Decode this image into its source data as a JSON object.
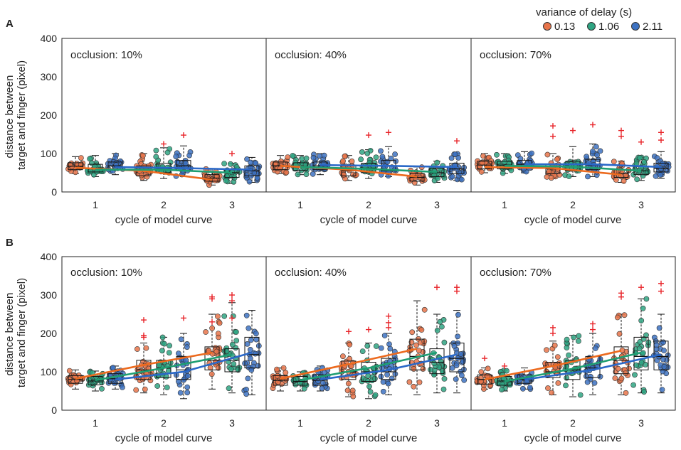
{
  "legend": {
    "title": "variance of delay (s)",
    "entries": [
      {
        "label": "0.13",
        "color": "#e8744a"
      },
      {
        "label": "1.06",
        "color": "#2fa583"
      },
      {
        "label": "2.11",
        "color": "#3d72c2"
      }
    ]
  },
  "colors": {
    "line": [
      "#ec6a1e",
      "#1e9e72",
      "#2a68c8"
    ],
    "outlier": "#e8252a",
    "box": "#111111"
  },
  "chart_data": [
    {
      "type": "box-scatter",
      "row_label": "A",
      "ylabel": "distance between\ntarget and finger (pixel)",
      "xlabel": "cycle of model curve",
      "ylim": [
        0,
        400
      ],
      "yticks": [
        0,
        100,
        200,
        300,
        400
      ],
      "categories": [
        "1",
        "2",
        "3"
      ],
      "series_names": [
        "0.13",
        "1.06",
        "2.11"
      ],
      "panels": [
        {
          "title": "occlusion: 10%",
          "boxes": [
            [
              [
                48,
                58,
                67,
                76,
                92
              ],
              [
                40,
                52,
                62,
                72,
                95
              ],
              [
                45,
                58,
                68,
                78,
                100
              ]
            ],
            [
              [
                30,
                42,
                55,
                68,
                100
              ],
              [
                35,
                50,
                60,
                75,
                115
              ],
              [
                40,
                55,
                68,
                82,
                120
              ]
            ],
            [
              [
                18,
                28,
                36,
                45,
                60
              ],
              [
                22,
                38,
                50,
                60,
                75
              ],
              [
                25,
                42,
                55,
                68,
                90
              ]
            ]
          ],
          "means": [
            [
              63,
              58,
              65
            ],
            [
              55,
              58,
              62
            ],
            [
              32,
              50,
              58
            ]
          ],
          "outliers": [
            [
              [],
              [],
              []
            ],
            [
              [],
              [
                125
              ],
              [
                148
              ]
            ],
            [
              [],
              [
                100
              ],
              []
            ]
          ]
        },
        {
          "title": "occlusion: 40%",
          "boxes": [
            [
              [
                48,
                58,
                68,
                78,
                95
              ],
              [
                45,
                56,
                66,
                76,
                95
              ],
              [
                45,
                58,
                68,
                78,
                100
              ]
            ],
            [
              [
                30,
                42,
                55,
                68,
                95
              ],
              [
                35,
                50,
                62,
                75,
                110
              ],
              [
                40,
                55,
                68,
                82,
                118
              ]
            ],
            [
              [
                18,
                28,
                38,
                48,
                65
              ],
              [
                25,
                40,
                50,
                62,
                80
              ],
              [
                30,
                48,
                60,
                75,
                100
              ]
            ]
          ],
          "means": [
            [
              68,
              65,
              70
            ],
            [
              58,
              60,
              68
            ],
            [
              40,
              52,
              65
            ]
          ],
          "outliers": [
            [
              [],
              [],
              []
            ],
            [
              [],
              [
                148
              ],
              [
                155
              ]
            ],
            [
              [],
              [],
              [
                133
              ]
            ]
          ]
        },
        {
          "title": "occlusion: 70%",
          "boxes": [
            [
              [
                50,
                60,
                70,
                80,
                100
              ],
              [
                48,
                60,
                70,
                80,
                100
              ],
              [
                50,
                62,
                72,
                82,
                105
              ]
            ],
            [
              [
                35,
                48,
                60,
                72,
                100
              ],
              [
                40,
                55,
                66,
                80,
                118
              ],
              [
                40,
                58,
                70,
                85,
                125
              ]
            ],
            [
              [
                25,
                38,
                48,
                58,
                80
              ],
              [
                30,
                45,
                55,
                66,
                90
              ],
              [
                35,
                52,
                62,
                75,
                105
              ]
            ]
          ],
          "means": [
            [
              65,
              68,
              72
            ],
            [
              62,
              66,
              72
            ],
            [
              45,
              55,
              65
            ]
          ],
          "outliers": [
            [
              [],
              [],
              []
            ],
            [
              [
                145,
                172
              ],
              [
                160
              ],
              [
                175
              ]
            ],
            [
              [
                145,
                160
              ],
              [
                130
              ],
              [
                155,
                135
              ]
            ]
          ]
        }
      ]
    },
    {
      "type": "box-scatter",
      "row_label": "B",
      "ylabel": "distance between\ntarget and finger (pixel)",
      "xlabel": "cycle of model curve",
      "ylim": [
        0,
        400
      ],
      "yticks": [
        0,
        100,
        200,
        300,
        400
      ],
      "categories": [
        "1",
        "2",
        "3"
      ],
      "series_names": [
        "0.13",
        "1.06",
        "2.11"
      ],
      "panels": [
        {
          "title": "occlusion: 10%",
          "boxes": [
            [
              [
                55,
                70,
                80,
                90,
                105
              ],
              [
                50,
                66,
                76,
                88,
                102
              ],
              [
                55,
                70,
                82,
                95,
                115
              ]
            ],
            [
              [
                45,
                80,
                105,
                130,
                175
              ],
              [
                40,
                85,
                110,
                130,
                190
              ],
              [
                30,
                80,
                105,
                140,
                200
              ]
            ],
            [
              [
                55,
                105,
                130,
                165,
                250
              ],
              [
                45,
                100,
                130,
                160,
                280
              ],
              [
                40,
                110,
                145,
                190,
                260
              ]
            ]
          ],
          "means": [
            [
              82,
              78,
              80
            ],
            [
              118,
              110,
              100
            ],
            [
              150,
              145,
              150
            ]
          ],
          "outliers": [
            [
              [],
              [],
              []
            ],
            [
              [
                235,
                190,
                195
              ],
              [],
              [
                240
              ]
            ],
            [
              [
                295,
                290,
                230
              ],
              [
                300,
                285,
                240
              ],
              []
            ]
          ]
        },
        {
          "title": "occlusion: 40%",
          "boxes": [
            [
              [
                50,
                65,
                78,
                90,
                110
              ],
              [
                50,
                65,
                75,
                88,
                100
              ],
              [
                50,
                65,
                78,
                92,
                115
              ]
            ],
            [
              [
                35,
                80,
                100,
                128,
                175
              ],
              [
                30,
                75,
                100,
                125,
                175
              ],
              [
                40,
                80,
                100,
                135,
                200
              ]
            ],
            [
              [
                40,
                105,
                140,
                185,
                285
              ],
              [
                45,
                95,
                125,
                160,
                250
              ],
              [
                45,
                100,
                135,
                175,
                260
              ]
            ]
          ],
          "means": [
            [
              82,
              78,
              80
            ],
            [
              120,
              110,
              105
            ],
            [
              160,
              150,
              145
            ]
          ],
          "outliers": [
            [
              [],
              [],
              []
            ],
            [
              [
                205
              ],
              [
                210
              ],
              [
                245,
                228,
                215
              ]
            ],
            [
              [],
              [
                320
              ],
              [
                320,
                310
              ]
            ]
          ]
        },
        {
          "title": "occlusion: 70%",
          "boxes": [
            [
              [
                55,
                68,
                80,
                92,
                110
              ],
              [
                50,
                65,
                76,
                88,
                105
              ],
              [
                55,
                70,
                80,
                92,
                110
              ]
            ],
            [
              [
                40,
                85,
                100,
                125,
                180
              ],
              [
                35,
                80,
                105,
                130,
                195
              ],
              [
                40,
                85,
                110,
                140,
                200
              ]
            ],
            [
              [
                40,
                95,
                130,
                165,
                250
              ],
              [
                45,
                105,
                140,
                190,
                290
              ],
              [
                45,
                105,
                140,
                180,
                250
              ]
            ]
          ],
          "means": [
            [
              80,
              75,
              80
            ],
            [
              115,
              108,
              105
            ],
            [
              155,
              150,
              145
            ]
          ],
          "outliers": [
            [
              [
                135
              ],
              [
                115
              ],
              []
            ],
            [
              [
                215,
                200
              ],
              [],
              [
                225,
                210
              ]
            ],
            [
              [
                305,
                295
              ],
              [
                320
              ],
              [
                330,
                310
              ]
            ]
          ]
        }
      ]
    }
  ]
}
